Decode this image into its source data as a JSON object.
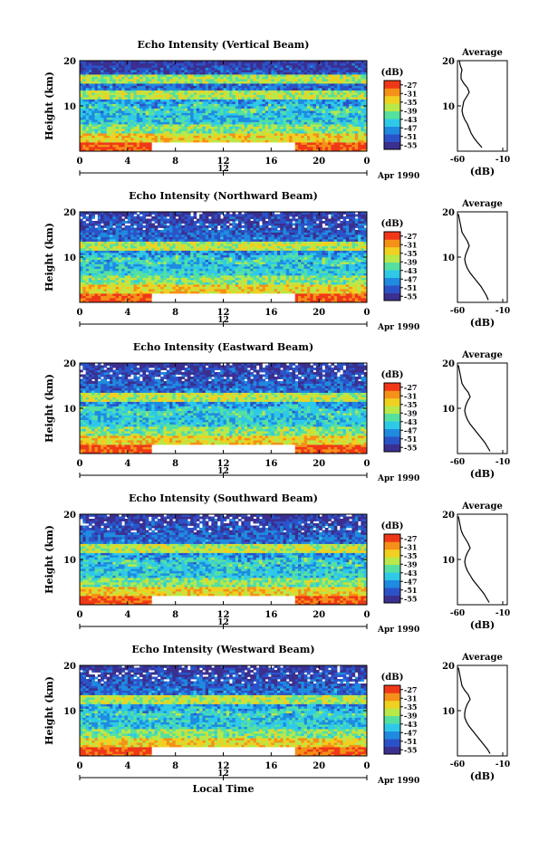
{
  "x_axis_title": "Local Time",
  "chart_data": [
    {
      "type": "heatmap",
      "title": "Echo Intensity (Vertical Beam)",
      "ylabel": "Height (km)",
      "ylim": [
        0,
        20
      ],
      "xlim": [
        0,
        24
      ],
      "xticks": [
        "0",
        "4",
        "8",
        "12",
        "16",
        "20",
        "0"
      ],
      "yticks": [
        "10",
        "20"
      ],
      "date_label": "Apr 1990",
      "date_tick": "12",
      "colorbar": {
        "unit": "(dB)",
        "labels": [
          "-27",
          "-31",
          "-35",
          "-39",
          "-43",
          "-47",
          "-51",
          "-55"
        ],
        "colors": [
          "#3b2f8f",
          "#2b53c9",
          "#1f8be0",
          "#2fc9e8",
          "#55e0a0",
          "#b8e84a",
          "#f0d020",
          "#f59018",
          "#f03818"
        ]
      },
      "gap": {
        "x": [
          6,
          18
        ],
        "y": [
          0,
          2
        ]
      },
      "profile": {
        "title": "Average",
        "xlabel": "(dB)",
        "xticks": [
          "-60",
          "-10"
        ],
        "xlim": [
          -60,
          -5
        ],
        "ylim": [
          0,
          20
        ],
        "yticks": [
          "10",
          "20"
        ],
        "points": [
          [
            -33,
            0.8
          ],
          [
            -36,
            1.5
          ],
          [
            -39,
            2.2
          ],
          [
            -42,
            3
          ],
          [
            -45,
            4
          ],
          [
            -47,
            5
          ],
          [
            -49,
            6
          ],
          [
            -52,
            7
          ],
          [
            -54,
            8
          ],
          [
            -55,
            9
          ],
          [
            -54,
            10
          ],
          [
            -53,
            11
          ],
          [
            -50,
            12
          ],
          [
            -47,
            13
          ],
          [
            -49,
            14
          ],
          [
            -53,
            15
          ],
          [
            -56,
            16
          ],
          [
            -56,
            17
          ],
          [
            -55,
            18
          ],
          [
            -57,
            19
          ],
          [
            -58,
            20
          ]
        ]
      }
    },
    {
      "type": "heatmap",
      "title": "Echo Intensity (Northward Beam)",
      "ylabel": "Height (km)",
      "ylim": [
        0,
        20
      ],
      "xlim": [
        0,
        24
      ],
      "xticks": [
        "0",
        "4",
        "8",
        "12",
        "16",
        "20",
        "0"
      ],
      "yticks": [
        "10",
        "20"
      ],
      "date_label": "Apr 1990",
      "date_tick": "12",
      "colorbar": {
        "unit": "(dB)",
        "labels": [
          "-27",
          "-31",
          "-35",
          "-39",
          "-43",
          "-47",
          "-51",
          "-55"
        ],
        "colors": [
          "#3b2f8f",
          "#2b53c9",
          "#1f8be0",
          "#2fc9e8",
          "#55e0a0",
          "#b8e84a",
          "#f0d020",
          "#f59018",
          "#f03818"
        ]
      },
      "gap": {
        "x": [
          6,
          18
        ],
        "y": [
          0,
          2
        ]
      },
      "profile": {
        "title": "Average",
        "xlabel": "(dB)",
        "xticks": [
          "-60",
          "-10"
        ],
        "xlim": [
          -60,
          -5
        ],
        "ylim": [
          0,
          20
        ],
        "yticks": [
          "10",
          "20"
        ],
        "points": [
          [
            -26,
            0.5
          ],
          [
            -28,
            1.5
          ],
          [
            -31,
            2.5
          ],
          [
            -34,
            3.5
          ],
          [
            -38,
            4.5
          ],
          [
            -42,
            5.5
          ],
          [
            -46,
            6.5
          ],
          [
            -49,
            7.5
          ],
          [
            -51,
            8.5
          ],
          [
            -52,
            9.5
          ],
          [
            -51,
            10.5
          ],
          [
            -49,
            11.5
          ],
          [
            -47,
            12.5
          ],
          [
            -49,
            13.5
          ],
          [
            -52,
            14.5
          ],
          [
            -55,
            15.5
          ],
          [
            -56,
            16.5
          ],
          [
            -57,
            17.5
          ],
          [
            -58,
            18.5
          ],
          [
            -59,
            19.5
          ]
        ]
      }
    },
    {
      "type": "heatmap",
      "title": "Echo Intensity (Eastward Beam)",
      "ylabel": "Height (km)",
      "ylim": [
        0,
        20
      ],
      "xlim": [
        0,
        24
      ],
      "xticks": [
        "0",
        "4",
        "8",
        "12",
        "16",
        "20",
        "0"
      ],
      "yticks": [
        "10",
        "20"
      ],
      "date_label": "Apr 1990",
      "date_tick": "12",
      "colorbar": {
        "unit": "(dB)",
        "labels": [
          "-27",
          "-31",
          "-35",
          "-39",
          "-43",
          "-47",
          "-51",
          "-55"
        ],
        "colors": [
          "#3b2f8f",
          "#2b53c9",
          "#1f8be0",
          "#2fc9e8",
          "#55e0a0",
          "#b8e84a",
          "#f0d020",
          "#f59018",
          "#f03818"
        ]
      },
      "gap": {
        "x": [
          6,
          18
        ],
        "y": [
          0,
          2
        ]
      },
      "profile": {
        "title": "Average",
        "xlabel": "(dB)",
        "xticks": [
          "-60",
          "-10"
        ],
        "xlim": [
          -60,
          -5
        ],
        "ylim": [
          0,
          20
        ],
        "yticks": [
          "10",
          "20"
        ],
        "points": [
          [
            -24,
            0.5
          ],
          [
            -27,
            1.5
          ],
          [
            -30,
            2.5
          ],
          [
            -34,
            3.5
          ],
          [
            -38,
            4.5
          ],
          [
            -42,
            5.5
          ],
          [
            -46,
            6.5
          ],
          [
            -49,
            7.5
          ],
          [
            -51,
            8.5
          ],
          [
            -52,
            9.5
          ],
          [
            -51,
            10.5
          ],
          [
            -49,
            11.5
          ],
          [
            -46,
            12.5
          ],
          [
            -48,
            13.5
          ],
          [
            -52,
            14.5
          ],
          [
            -55,
            15.5
          ],
          [
            -56,
            16.5
          ],
          [
            -57,
            17.5
          ],
          [
            -58,
            18.5
          ],
          [
            -59,
            19.5
          ]
        ]
      }
    },
    {
      "type": "heatmap",
      "title": "Echo Intensity (Southward Beam)",
      "ylabel": "Height (km)",
      "ylim": [
        0,
        20
      ],
      "xlim": [
        0,
        24
      ],
      "xticks": [
        "0",
        "4",
        "8",
        "12",
        "16",
        "20",
        "0"
      ],
      "yticks": [
        "10",
        "20"
      ],
      "date_label": "Apr 1990",
      "date_tick": "12",
      "colorbar": {
        "unit": "(dB)",
        "labels": [
          "-27",
          "-31",
          "-35",
          "-39",
          "-43",
          "-47",
          "-51",
          "-55"
        ],
        "colors": [
          "#3b2f8f",
          "#2b53c9",
          "#1f8be0",
          "#2fc9e8",
          "#55e0a0",
          "#b8e84a",
          "#f0d020",
          "#f59018",
          "#f03818"
        ]
      },
      "gap": {
        "x": [
          6,
          18
        ],
        "y": [
          0,
          2
        ]
      },
      "profile": {
        "title": "Average",
        "xlabel": "(dB)",
        "xticks": [
          "-60",
          "-10"
        ],
        "xlim": [
          -60,
          -5
        ],
        "ylim": [
          0,
          20
        ],
        "yticks": [
          "10",
          "20"
        ],
        "points": [
          [
            -25,
            0.5
          ],
          [
            -28,
            1.5
          ],
          [
            -31,
            2.5
          ],
          [
            -35,
            3.5
          ],
          [
            -39,
            4.5
          ],
          [
            -43,
            5.5
          ],
          [
            -46,
            6.5
          ],
          [
            -49,
            7.5
          ],
          [
            -51,
            8.5
          ],
          [
            -52,
            9.5
          ],
          [
            -51,
            10.5
          ],
          [
            -49,
            11.5
          ],
          [
            -46,
            12.5
          ],
          [
            -48,
            13.5
          ],
          [
            -51,
            14.5
          ],
          [
            -54,
            15.5
          ],
          [
            -56,
            16.5
          ],
          [
            -57,
            17.5
          ],
          [
            -58,
            18.5
          ],
          [
            -59,
            19.5
          ]
        ]
      }
    },
    {
      "type": "heatmap",
      "title": "Echo Intensity (Westward Beam)",
      "ylabel": "Height (km)",
      "ylim": [
        0,
        20
      ],
      "xlim": [
        0,
        24
      ],
      "xticks": [
        "0",
        "4",
        "8",
        "12",
        "16",
        "20",
        "0"
      ],
      "yticks": [
        "10",
        "20"
      ],
      "date_label": "Apr 1990",
      "date_tick": "12",
      "colorbar": {
        "unit": "(dB)",
        "labels": [
          "-27",
          "-31",
          "-35",
          "-39",
          "-43",
          "-47",
          "-51",
          "-55"
        ],
        "colors": [
          "#3b2f8f",
          "#2b53c9",
          "#1f8be0",
          "#2fc9e8",
          "#55e0a0",
          "#b8e84a",
          "#f0d020",
          "#f59018",
          "#f03818"
        ]
      },
      "gap": {
        "x": [
          6,
          18
        ],
        "y": [
          0,
          2
        ]
      },
      "profile": {
        "title": "Average",
        "xlabel": "(dB)",
        "xticks": [
          "-60",
          "-10"
        ],
        "xlim": [
          -60,
          -5
        ],
        "ylim": [
          0,
          20
        ],
        "yticks": [
          "10",
          "20"
        ],
        "points": [
          [
            -24,
            0.5
          ],
          [
            -27,
            1.5
          ],
          [
            -31,
            2.5
          ],
          [
            -35,
            3.5
          ],
          [
            -39,
            4.5
          ],
          [
            -43,
            5.5
          ],
          [
            -47,
            6.5
          ],
          [
            -50,
            7.5
          ],
          [
            -52,
            8.5
          ],
          [
            -52,
            9.5
          ],
          [
            -51,
            10.5
          ],
          [
            -49,
            11.5
          ],
          [
            -46,
            12.5
          ],
          [
            -48,
            13.5
          ],
          [
            -52,
            14.5
          ],
          [
            -55,
            15.5
          ],
          [
            -56,
            16.5
          ],
          [
            -57,
            17.5
          ],
          [
            -58,
            18.5
          ],
          [
            -59,
            19.5
          ]
        ]
      }
    }
  ]
}
